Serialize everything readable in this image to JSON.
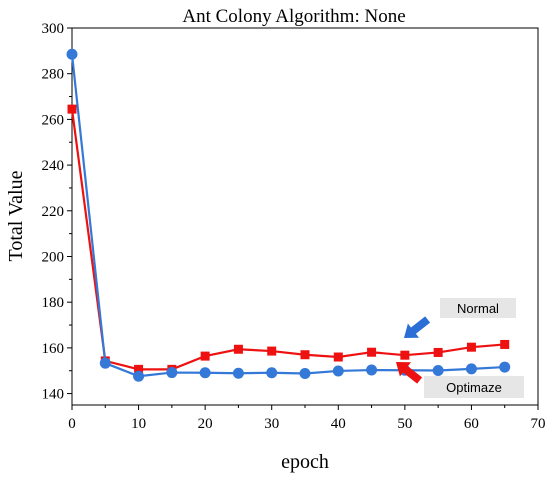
{
  "chart_data": {
    "type": "line",
    "title": "Ant Colony Algorithm: None",
    "xlabel": "epoch",
    "ylabel": "Total Value",
    "xlim": [
      0,
      70
    ],
    "ylim": [
      135,
      300
    ],
    "x_ticks": [
      0,
      10,
      20,
      30,
      40,
      50,
      60,
      70
    ],
    "y_ticks": [
      140,
      160,
      180,
      200,
      220,
      240,
      260,
      280,
      300
    ],
    "grid": false,
    "x": [
      0,
      5,
      10,
      15,
      20,
      25,
      30,
      35,
      40,
      45,
      50,
      55,
      60,
      65
    ],
    "series": [
      {
        "name": "Normal",
        "color": "#ee1111",
        "marker": "square",
        "values": [
          264.5,
          154.3,
          150.6,
          150.6,
          156.4,
          159.4,
          158.6,
          157.0,
          156.0,
          158.1,
          156.8,
          158.0,
          160.3,
          161.5
        ]
      },
      {
        "name": "Optimaze",
        "color": "#3478d8",
        "marker": "circle",
        "values": [
          288.5,
          153.3,
          147.6,
          149.2,
          149.1,
          148.9,
          149.1,
          148.8,
          149.9,
          150.3,
          150.2,
          150.1,
          150.8,
          151.6
        ]
      }
    ],
    "annotations": [
      {
        "text": "Normal",
        "series": 0,
        "arrow_color": "#2b6fd6"
      },
      {
        "text": "Optimaze",
        "series": 1,
        "arrow_color": "#ee1111"
      }
    ]
  }
}
